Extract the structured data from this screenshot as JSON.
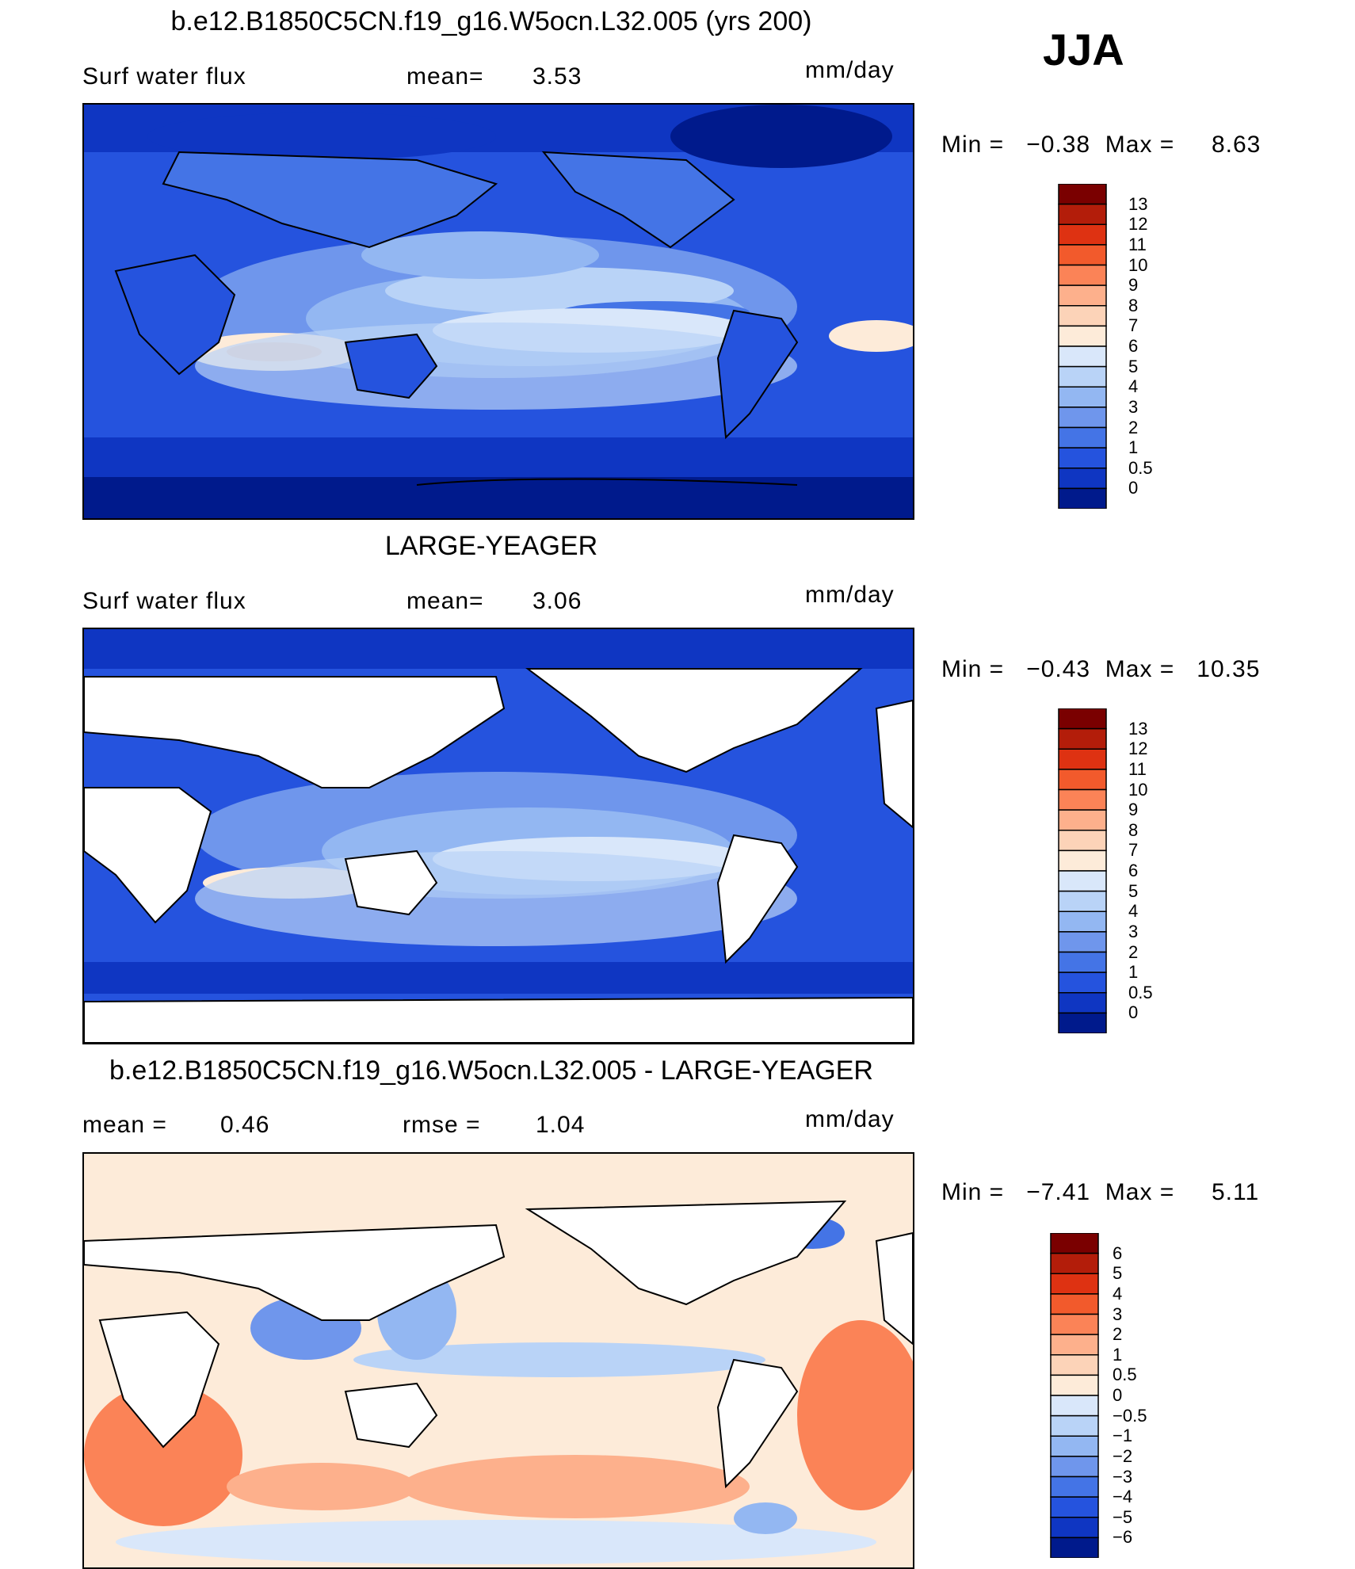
{
  "season": "JJA",
  "units": "mm/day",
  "panels": [
    {
      "title": "b.e12.B1850C5CN.f19_g16.W5ocn.L32.005 (yrs 200)",
      "left_label": "Surf water flux",
      "mid_label": "mean=",
      "mid_value": "3.53",
      "min_max": "Min =   −0.38  Max =     8.63",
      "colorbar_labels": [
        "13",
        "12",
        "11",
        "10",
        "9",
        "8",
        "7",
        "6",
        "5",
        "4",
        "3",
        "2",
        "1",
        "0.5",
        "0"
      ],
      "colors": [
        "#7a0000",
        "#b31d0a",
        "#de3212",
        "#f25a2c",
        "#fb8357",
        "#fdb08c",
        "#fcd3b8",
        "#fdebd9",
        "#d9e7fa",
        "#b9d3f7",
        "#93b7f2",
        "#6f96ec",
        "#4474e6",
        "#2553de",
        "#0f36c2",
        "#001a8c"
      ]
    },
    {
      "title": "LARGE-YEAGER",
      "left_label": "Surf water flux",
      "mid_label": "mean=",
      "mid_value": "3.06",
      "min_max": "Min =   −0.43  Max =   10.35",
      "colorbar_labels": [
        "13",
        "12",
        "11",
        "10",
        "9",
        "8",
        "7",
        "6",
        "5",
        "4",
        "3",
        "2",
        "1",
        "0.5",
        "0"
      ],
      "colors": [
        "#7a0000",
        "#b31d0a",
        "#de3212",
        "#f25a2c",
        "#fb8357",
        "#fdb08c",
        "#fcd3b8",
        "#fdebd9",
        "#d9e7fa",
        "#b9d3f7",
        "#93b7f2",
        "#6f96ec",
        "#4474e6",
        "#2553de",
        "#0f36c2",
        "#001a8c"
      ]
    },
    {
      "title": "b.e12.B1850C5CN.f19_g16.W5ocn.L32.005 - LARGE-YEAGER",
      "left_label": "mean =",
      "left_value": "0.46",
      "mid_label": "rmse =",
      "mid_value": "1.04",
      "min_max": "Min =   −7.41  Max =     5.11",
      "colorbar_labels": [
        "6",
        "5",
        "4",
        "3",
        "2",
        "1",
        "0.5",
        "0",
        "−0.5",
        "−1",
        "−2",
        "−3",
        "−4",
        "−5",
        "−6"
      ],
      "colors": [
        "#7a0000",
        "#b31d0a",
        "#de3212",
        "#f25a2c",
        "#fb8357",
        "#fdb08c",
        "#fcd3b8",
        "#fdebd9",
        "#d9e7fa",
        "#b9d3f7",
        "#93b7f2",
        "#6f96ec",
        "#4474e6",
        "#2553de",
        "#0f36c2",
        "#001a8c"
      ]
    }
  ]
}
